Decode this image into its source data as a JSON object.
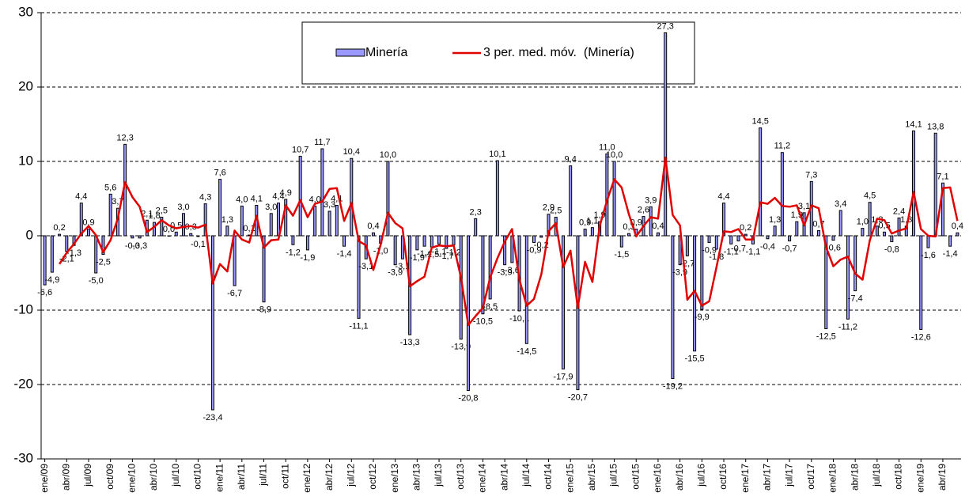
{
  "chart_data": {
    "type": "bar",
    "categories": [
      "ene/09",
      null,
      null,
      "abr/09",
      null,
      null,
      "jul/09",
      null,
      null,
      "oct/09",
      null,
      null,
      "ene/10",
      null,
      null,
      "abr/10",
      null,
      null,
      "jul/10",
      null,
      null,
      "oct/10",
      null,
      null,
      "ene/11",
      null,
      null,
      "abr/11",
      null,
      null,
      "jul/11",
      null,
      null,
      "oct/11",
      null,
      null,
      "ene/12",
      null,
      null,
      "abr/12",
      null,
      null,
      "jul/12",
      null,
      null,
      "oct/12",
      null,
      null,
      "ene/13",
      null,
      null,
      "abr/13",
      null,
      null,
      "jul/13",
      null,
      null,
      "oct/13",
      null,
      null,
      "ene/14",
      null,
      null,
      "abr/14",
      null,
      null,
      "jul/14",
      null,
      null,
      "oct/14",
      null,
      null,
      "ene/15",
      null,
      null,
      "abr/15",
      null,
      null,
      "jul/15",
      null,
      null,
      "oct/15",
      null,
      null,
      "ene/16",
      null,
      null,
      "abr/16",
      null,
      null,
      "jul/16",
      null,
      null,
      "oct/16",
      null,
      null,
      "ene/17",
      null,
      null,
      "abr/17",
      null,
      null,
      "jul/17",
      null,
      null,
      "oct/17",
      null,
      null,
      "ene/18",
      null,
      null,
      "abr/18",
      null,
      null,
      "jul/18",
      null,
      null,
      "oct/18",
      null,
      null,
      "ene/19",
      null,
      null,
      "abr/19",
      null,
      null
    ],
    "series": [
      {
        "name": "Minería",
        "color": "#9999ff",
        "values": [
          -6.6,
          -4.9,
          0.2,
          -2.1,
          -1.3,
          4.4,
          0.9,
          -5.0,
          -2.5,
          5.6,
          3.7,
          12.3,
          -0.3,
          -0.3,
          2.1,
          1.8,
          2.5,
          0.0,
          0.5,
          3.0,
          0.3,
          -0.1,
          4.3,
          -23.4,
          7.6,
          1.3,
          -6.7,
          4.0,
          0.1,
          4.1,
          -8.9,
          3.0,
          4.4,
          4.9,
          -1.2,
          10.7,
          -1.9,
          4.0,
          11.7,
          3.3,
          4.1,
          -1.4,
          10.4,
          -11.1,
          -3.1,
          0.4,
          -1.0,
          10.0,
          -3.9,
          -3.1,
          -13.3,
          -1.9,
          -1.4,
          -1.5,
          -1.1,
          -1.7,
          -1.2,
          -13.9,
          -20.8,
          2.3,
          -10.5,
          -8.5,
          10.1,
          -3.9,
          -3.6,
          -10.1,
          -14.5,
          -0.9,
          -0.2,
          2.9,
          2.5,
          -17.9,
          9.4,
          -20.7,
          0.9,
          1.1,
          1.9,
          11.0,
          10.0,
          -1.5,
          0.3,
          0.9,
          2.6,
          3.9,
          0.4,
          27.3,
          -19.2,
          -3.9,
          -2.7,
          -15.5,
          -9.9,
          -0.9,
          -1.8,
          4.4,
          -1.1,
          -0.7,
          0.2,
          -1.1,
          14.5,
          -0.4,
          1.3,
          11.2,
          -0.7,
          1.9,
          3.1,
          7.3,
          0.7,
          -12.5,
          -0.6,
          3.4,
          -11.2,
          -7.4,
          1.0,
          4.5,
          1.3,
          0.5,
          -0.8,
          2.4,
          1.3,
          14.1,
          -12.6,
          -1.6,
          13.8,
          7.1,
          -1.4,
          0.4
        ],
        "value_labels": [
          "-6,6",
          "-4,9",
          "0,2",
          "-2,1",
          "-1,3",
          "4,4",
          "0,9",
          "-5,0",
          "-2,5",
          "5,6",
          "3,7",
          "12,3",
          "-0,3",
          "-0,3",
          "2,1",
          "1,8",
          "2,5",
          "0,0",
          "0,5",
          "3,0",
          "0,3",
          "-0,1",
          "4,3",
          "-23,4",
          "7,6",
          "1,3",
          "-6,7",
          "4,0",
          "0,1",
          "4,1",
          "-8,9",
          "3,0",
          "4,4",
          "4,9",
          "-1,2",
          "10,7",
          "-1,9",
          "4,0",
          "11,7",
          "3,3",
          "4,1",
          "-1,4",
          "10,4",
          "-11,1",
          "-3,1",
          "0,4",
          "-1,0",
          "10,0",
          "-3,9",
          "-3,1",
          "-13,3",
          "-1,9",
          "-1,4",
          "-1,5",
          "-1,1",
          "-1,7",
          "-1,2",
          "-13,9",
          "-20,8",
          "2,3",
          "-10,5",
          "-8,5",
          "10,1",
          "-3,9",
          "-3,6",
          "-10,1",
          "-14,5",
          "-0,9",
          "-0,2",
          "2,9",
          "2,5",
          "-17,9",
          "9,4",
          "-20,7",
          "0,9",
          "1,1",
          "1,9",
          "11,0",
          "10,0",
          "-1,5",
          "0,3",
          "0,9",
          "2,6",
          "3,9",
          "0,4",
          "27,3",
          "-19,2",
          "-3,9",
          "-2,7",
          "-15,5",
          "-9,9",
          "-0,9",
          "-1,8",
          "4,4",
          "-1,1",
          "-0,7",
          "0,2",
          "-1,1",
          "14,5",
          "-0,4",
          "1,3",
          "11,2",
          "-0,7",
          "1,9",
          "3,1",
          "7,3",
          "0,7",
          "-12,5",
          "-0,6",
          "3,4",
          "-11,2",
          "-7,4",
          "1,0",
          "4,5",
          "1,3",
          "0,5",
          "-0,8",
          "2,4",
          "1,3",
          "14,1",
          "-12,6",
          "-1,6",
          "13,8",
          "7,1",
          "-1,4",
          "0,4"
        ]
      },
      {
        "name": "3 per. med. móv.  (Minería)",
        "color": "#e00000",
        "type": "line",
        "values": [
          null,
          null,
          -3.8,
          -2.3,
          -1.1,
          0.3,
          1.3,
          0.1,
          -2.2,
          -0.6,
          2.3,
          7.2,
          5.2,
          3.9,
          0.5,
          1.2,
          2.1,
          1.4,
          1.0,
          1.2,
          1.3,
          1.1,
          1.5,
          -6.4,
          -3.8,
          -4.8,
          0.7,
          -0.5,
          -0.9,
          2.7,
          -1.6,
          -0.6,
          -0.5,
          4.1,
          2.7,
          4.8,
          2.5,
          4.3,
          4.6,
          6.3,
          6.4,
          2.0,
          4.4,
          -0.7,
          -1.3,
          -4.6,
          -1.2,
          3.1,
          1.7,
          1.0,
          -6.8,
          -6.1,
          -5.5,
          -1.6,
          -1.3,
          -1.4,
          -1.3,
          -5.6,
          -12.0,
          -10.8,
          -9.7,
          -5.6,
          -3.0,
          -0.8,
          0.9,
          -5.9,
          -9.4,
          -8.5,
          -5.2,
          0.6,
          1.7,
          -4.2,
          -2.0,
          -9.7,
          -3.5,
          -6.2,
          1.3,
          4.7,
          7.6,
          6.5,
          2.9,
          -0.1,
          1.3,
          2.5,
          2.3,
          10.5,
          2.8,
          1.4,
          -8.6,
          -7.4,
          -9.4,
          -8.8,
          -4.2,
          0.6,
          0.5,
          0.9,
          -0.5,
          -0.5,
          4.5,
          4.3,
          5.1,
          4.0,
          3.9,
          4.1,
          1.4,
          4.1,
          3.7,
          -1.5,
          -4.1,
          -3.2,
          -2.8,
          -5.1,
          -5.9,
          -0.6,
          2.3,
          2.1,
          0.3,
          0.7,
          1.0,
          5.9,
          0.9,
          0.0,
          -0.1,
          6.4,
          6.5,
          2.0
        ]
      }
    ],
    "ylim": [
      -30,
      30
    ],
    "yticks": [
      -30,
      -20,
      -10,
      0,
      10,
      20,
      30
    ],
    "grid": true,
    "legend": "top"
  }
}
